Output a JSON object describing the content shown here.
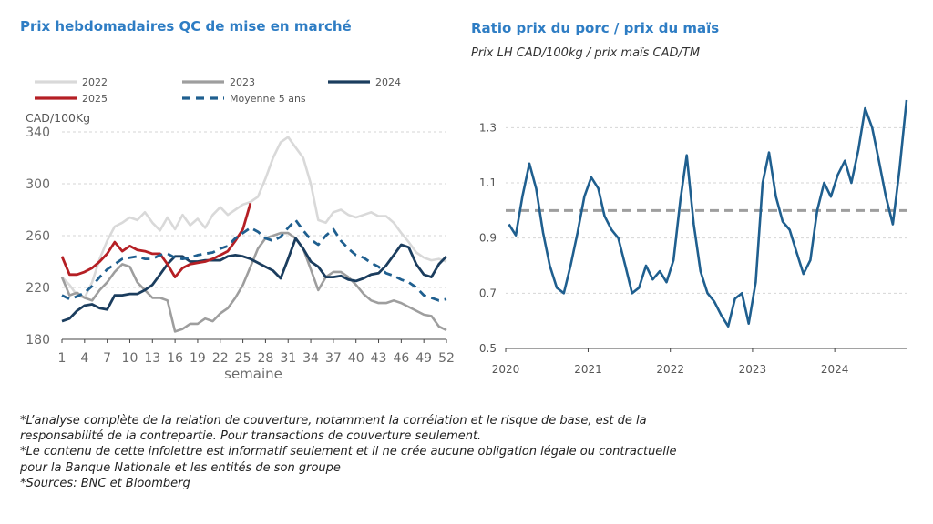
{
  "left_title": "Prix hebdomadaires QC de mise en marché",
  "right_title": "Ratio prix du porc / prix du maïs",
  "right_subtitle": "Prix LH CAD/100kg / prix maïs CAD/TM",
  "notes": [
    "*L’analyse complète de la relation de couverture, notamment la corrélation et le risque de base, est de la",
    "responsabilité de la contrepartie. Pour transactions de couverture seulement.",
    "*Le contenu de cette infolettre est informatif seulement et il ne crée aucune obligation légale ou contractuelle",
    "pour la Banque Nationale et les entités de son groupe",
    "*Sources: BNC et Bloomberg"
  ],
  "chart_data": [
    {
      "type": "line",
      "title": "Prix hebdomadaires QC de mise en marché",
      "ylabel": "CAD/100Kg",
      "xlabel": "semaine",
      "xlim": [
        1,
        52
      ],
      "ylim": [
        180,
        340
      ],
      "yticks": [
        180,
        220,
        260,
        300,
        340
      ],
      "xticks": [
        1,
        4,
        7,
        10,
        13,
        16,
        19,
        22,
        25,
        28,
        31,
        34,
        37,
        40,
        43,
        46,
        49,
        52
      ],
      "grid": "horizontal dashed",
      "legend_position": "top",
      "series": [
        {
          "name": "2022",
          "color": "#d9d9d9",
          "style": "solid",
          "x": [
            1,
            2,
            3,
            4,
            5,
            6,
            7,
            8,
            9,
            10,
            11,
            12,
            13,
            14,
            15,
            16,
            17,
            18,
            19,
            20,
            21,
            22,
            23,
            24,
            25,
            26,
            27,
            28,
            29,
            30,
            31,
            32,
            33,
            34,
            35,
            36,
            37,
            38,
            39,
            40,
            41,
            42,
            43,
            44,
            45,
            46,
            47,
            48,
            49,
            50,
            51,
            52
          ],
          "values": [
            228,
            222,
            214,
            212,
            224,
            242,
            256,
            267,
            270,
            274,
            272,
            278,
            270,
            264,
            274,
            265,
            276,
            268,
            273,
            266,
            276,
            282,
            276,
            280,
            284,
            286,
            290,
            304,
            320,
            332,
            336,
            328,
            320,
            300,
            272,
            270,
            278,
            280,
            276,
            274,
            276,
            278,
            275,
            275,
            270,
            262,
            255,
            247,
            243,
            241,
            242,
            240
          ]
        },
        {
          "name": "2023",
          "color": "#9e9e9e",
          "style": "solid",
          "x": [
            1,
            2,
            3,
            4,
            5,
            6,
            7,
            8,
            9,
            10,
            11,
            12,
            13,
            14,
            15,
            16,
            17,
            18,
            19,
            20,
            21,
            22,
            23,
            24,
            25,
            26,
            27,
            28,
            29,
            30,
            31,
            32,
            33,
            34,
            35,
            36,
            37,
            38,
            39,
            40,
            41,
            42,
            43,
            44,
            45,
            46,
            47,
            48,
            49,
            50,
            51,
            52
          ],
          "values": [
            228,
            214,
            216,
            212,
            210,
            218,
            224,
            232,
            238,
            236,
            224,
            218,
            212,
            212,
            210,
            186,
            188,
            192,
            192,
            196,
            194,
            200,
            204,
            212,
            222,
            236,
            250,
            258,
            260,
            262,
            262,
            258,
            250,
            234,
            218,
            228,
            232,
            232,
            228,
            222,
            215,
            210,
            208,
            208,
            210,
            208,
            205,
            202,
            199,
            198,
            190,
            187
          ]
        },
        {
          "name": "2024",
          "color": "#1b3d5e",
          "style": "solid",
          "x": [
            1,
            2,
            3,
            4,
            5,
            6,
            7,
            8,
            9,
            10,
            11,
            12,
            13,
            14,
            15,
            16,
            17,
            18,
            19,
            20,
            21,
            22,
            23,
            24,
            25,
            26,
            27,
            28,
            29,
            30,
            31,
            32,
            33,
            34,
            35,
            36,
            37,
            38,
            39,
            40,
            41,
            42,
            43,
            44,
            45,
            46,
            47,
            48,
            49,
            50,
            51,
            52
          ],
          "values": [
            194,
            196,
            202,
            206,
            207,
            204,
            203,
            214,
            214,
            215,
            215,
            218,
            222,
            230,
            238,
            244,
            244,
            240,
            240,
            241,
            241,
            241,
            244,
            245,
            244,
            242,
            239,
            236,
            233,
            227,
            242,
            258,
            250,
            240,
            236,
            228,
            228,
            229,
            226,
            225,
            227,
            230,
            231,
            237,
            245,
            253,
            251,
            238,
            230,
            228,
            238,
            244
          ]
        },
        {
          "name": "2025",
          "color": "#b51f24",
          "style": "solid",
          "x": [
            1,
            2,
            3,
            4,
            5,
            6,
            7,
            8,
            9,
            10,
            11,
            12,
            13,
            14,
            15,
            16,
            17,
            18,
            19,
            20,
            21,
            22,
            23,
            24,
            25,
            26
          ],
          "values": [
            244,
            230,
            230,
            232,
            235,
            240,
            246,
            255,
            248,
            252,
            249,
            248,
            246,
            246,
            238,
            228,
            235,
            238,
            239,
            240,
            242,
            245,
            248,
            256,
            265,
            285
          ]
        },
        {
          "name": "Moyenne 5 ans",
          "color": "#1f5f8f",
          "style": "dashed",
          "x": [
            1,
            2,
            3,
            4,
            5,
            6,
            7,
            8,
            9,
            10,
            11,
            12,
            13,
            14,
            15,
            16,
            17,
            18,
            19,
            20,
            21,
            22,
            23,
            24,
            25,
            26,
            27,
            28,
            29,
            30,
            31,
            32,
            33,
            34,
            35,
            36,
            37,
            38,
            39,
            40,
            41,
            42,
            43,
            44,
            45,
            46,
            47,
            48,
            49,
            50,
            51,
            52
          ],
          "values": [
            214,
            211,
            213,
            216,
            221,
            228,
            234,
            238,
            242,
            243,
            244,
            242,
            242,
            245,
            246,
            243,
            242,
            243,
            245,
            246,
            247,
            250,
            252,
            258,
            262,
            266,
            263,
            258,
            256,
            259,
            266,
            272,
            264,
            257,
            253,
            260,
            265,
            256,
            250,
            245,
            243,
            239,
            236,
            231,
            229,
            226,
            224,
            220,
            214,
            212,
            210,
            211
          ]
        }
      ]
    },
    {
      "type": "line",
      "title": "Ratio prix du porc / prix du maïs",
      "subtitle": "Prix LH CAD/100kg / prix maïs CAD/TM",
      "xlim": [
        "2020-01-01",
        "2024-11-15"
      ],
      "ylim": [
        0.5,
        1.4
      ],
      "yticks": [
        0.5,
        0.7,
        0.9,
        1.1,
        1.3
      ],
      "xticks": [
        "2020",
        "2021",
        "2022",
        "2023",
        "2024"
      ],
      "grid": "horizontal dashed",
      "reference_line": {
        "value": 1.0,
        "color": "#9e9e9e",
        "style": "dashed"
      },
      "series": [
        {
          "color": "#1f5f8f",
          "x": [
            "2020-01",
            "2020-02",
            "2020-03",
            "2020-04",
            "2020-05",
            "2020-06",
            "2020-07",
            "2020-08",
            "2020-09",
            "2020-10",
            "2020-11",
            "2020-12",
            "2021-01",
            "2021-02",
            "2021-03",
            "2021-04",
            "2021-05",
            "2021-06",
            "2021-07",
            "2021-08",
            "2021-09",
            "2021-10",
            "2021-11",
            "2021-12",
            "2022-01",
            "2022-02",
            "2022-03",
            "2022-04",
            "2022-05",
            "2022-06",
            "2022-07",
            "2022-08",
            "2022-09",
            "2022-10",
            "2022-11",
            "2022-12",
            "2023-01",
            "2023-02",
            "2023-03",
            "2023-04",
            "2023-05",
            "2023-06",
            "2023-07",
            "2023-08",
            "2023-09",
            "2023-10",
            "2023-11",
            "2023-12",
            "2024-01",
            "2024-02",
            "2024-03",
            "2024-04",
            "2024-05",
            "2024-06",
            "2024-07",
            "2024-08",
            "2024-09",
            "2024-10",
            "2024-11"
          ],
          "values": [
            0.95,
            0.91,
            1.05,
            1.17,
            1.08,
            0.92,
            0.8,
            0.72,
            0.7,
            0.8,
            0.92,
            1.05,
            1.12,
            1.08,
            0.98,
            0.93,
            0.9,
            0.8,
            0.7,
            0.72,
            0.8,
            0.75,
            0.78,
            0.74,
            0.82,
            1.04,
            1.2,
            0.95,
            0.78,
            0.7,
            0.67,
            0.62,
            0.58,
            0.68,
            0.7,
            0.59,
            0.74,
            1.1,
            1.21,
            1.05,
            0.96,
            0.93,
            0.85,
            0.77,
            0.82,
            1.0,
            1.1,
            1.05,
            1.13,
            1.18,
            1.1,
            1.22,
            1.37,
            1.3,
            1.18,
            1.05,
            0.95,
            1.15,
            1.4
          ]
        }
      ]
    }
  ]
}
